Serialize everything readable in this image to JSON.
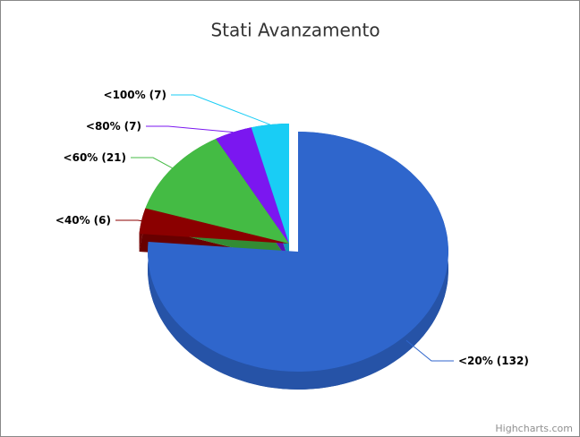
{
  "chart_data": {
    "type": "pie3d",
    "title": "Stati Avanzamento",
    "categories": [
      "<20%",
      "<40%",
      "<60%",
      "<80%",
      "<100%"
    ],
    "values": [
      132,
      6,
      21,
      7,
      7
    ],
    "value_labels": [
      "(132)",
      "(6)",
      "(21)",
      "(7)",
      "(7)"
    ],
    "colors": [
      "#2f66cc",
      "#8b0000",
      "#44bb44",
      "#7b17f0",
      "#19cdf5"
    ],
    "credits": "Highcharts.com"
  }
}
